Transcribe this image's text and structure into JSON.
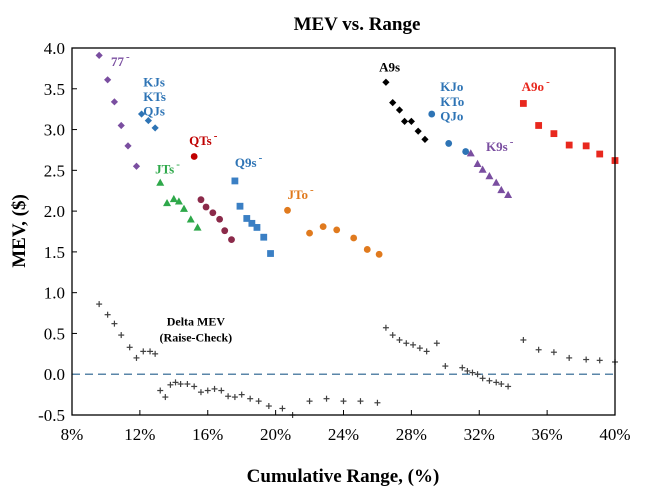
{
  "chart_data": {
    "type": "scatter",
    "title": "MEV vs. Range",
    "xlabel": "Cumulative Range, (%)",
    "ylabel": "MEV, ($)",
    "xlim": [
      8,
      40
    ],
    "ylim": [
      -0.5,
      4.0
    ],
    "xticks": [
      8,
      12,
      16,
      20,
      24,
      28,
      32,
      36,
      40
    ],
    "xtick_labels": [
      "8%",
      "12%",
      "16%",
      "20%",
      "24%",
      "28%",
      "32%",
      "36%",
      "40%"
    ],
    "yticks": [
      -0.5,
      0.0,
      0.5,
      1.0,
      1.5,
      2.0,
      2.5,
      3.0,
      3.5,
      4.0
    ],
    "ytick_labels": [
      "-0.5",
      "0.0",
      "0.5",
      "1.0",
      "1.5",
      "2.0",
      "2.5",
      "3.0",
      "3.5",
      "4.0"
    ],
    "reference_line": {
      "y": 0.0,
      "style": "dashed",
      "color": "#5a86a8"
    },
    "series": [
      {
        "name": "77-",
        "label": "77",
        "superscript": "-",
        "color": "#7a4ea0",
        "marker": "diamond",
        "x": [
          9.6,
          10.1,
          10.5,
          10.9,
          11.3,
          11.8
        ],
        "y": [
          3.91,
          3.61,
          3.34,
          3.05,
          2.8,
          2.55
        ]
      },
      {
        "name": "KJs / KTs / QJs",
        "label": "KJs\nKTs\nQJs",
        "color": "#2e74b5",
        "marker": "diamond",
        "x": [
          12.1,
          12.5,
          12.9
        ],
        "y": [
          3.19,
          3.11,
          3.02
        ]
      },
      {
        "name": "QTs-",
        "label": "QTs",
        "superscript": "-",
        "color": "#c00000",
        "marker": "circle",
        "x": [
          15.2
        ],
        "y": [
          2.67
        ]
      },
      {
        "name": "JTs-",
        "label": "JTs",
        "superscript": "-",
        "color": "#2ea84a",
        "marker": "triangle",
        "x": [
          13.2,
          13.6,
          14.0,
          14.3,
          14.6,
          15.0,
          15.4
        ],
        "y": [
          2.35,
          2.1,
          2.15,
          2.12,
          2.03,
          1.9,
          1.8
        ]
      },
      {
        "name": "QTs- (cont.)",
        "label": "",
        "color": "#8b2a4a",
        "marker": "circle",
        "x": [
          15.6,
          15.9,
          16.3,
          16.7,
          17.0,
          17.4
        ],
        "y": [
          2.14,
          2.05,
          1.98,
          1.9,
          1.76,
          1.65
        ]
      },
      {
        "name": "Q9s-",
        "label": "Q9s",
        "superscript": "-",
        "color": "#3a7fc4",
        "marker": "square",
        "x": [
          17.6,
          17.9,
          18.3,
          18.6,
          18.9,
          19.3,
          19.7
        ],
        "y": [
          2.37,
          2.06,
          1.91,
          1.85,
          1.8,
          1.68,
          1.48
        ]
      },
      {
        "name": "JTo-",
        "label": "JTo",
        "superscript": "-",
        "color": "#e07a1e",
        "marker": "circle",
        "x": [
          20.7,
          22.0,
          22.8,
          23.6,
          24.6,
          25.4,
          26.1
        ],
        "y": [
          2.01,
          1.73,
          1.81,
          1.77,
          1.67,
          1.53,
          1.47
        ]
      },
      {
        "name": "A9s",
        "label": "A9s",
        "color": "#000000",
        "marker": "diamond",
        "x": [
          26.5,
          26.9,
          27.3,
          27.6,
          28.0,
          28.4,
          28.8
        ],
        "y": [
          3.58,
          3.33,
          3.24,
          3.1,
          3.1,
          2.98,
          2.88
        ]
      },
      {
        "name": "KJo / KTo / QJo",
        "label": "KJo\nKTo\nQJo",
        "color": "#2e74b5",
        "marker": "circle",
        "x": [
          29.2,
          30.2,
          31.2
        ],
        "y": [
          3.19,
          2.83,
          2.73
        ]
      },
      {
        "name": "K9s-",
        "label": "K9s",
        "superscript": "-",
        "color": "#7a4ea0",
        "marker": "triangle",
        "x": [
          31.5,
          31.9,
          32.2,
          32.6,
          33.0,
          33.3,
          33.7
        ],
        "y": [
          2.71,
          2.58,
          2.51,
          2.43,
          2.35,
          2.26,
          2.2
        ]
      },
      {
        "name": "A9o-",
        "label": "A9o",
        "superscript": "-",
        "color": "#e8281e",
        "marker": "square",
        "x": [
          34.6,
          35.5,
          36.4,
          37.3,
          38.3,
          39.1,
          40.0
        ],
        "y": [
          3.32,
          3.05,
          2.95,
          2.81,
          2.8,
          2.7,
          2.62
        ]
      },
      {
        "name": "Delta MEV (Raise-Check)",
        "label": "Delta MEV\n(Raise-Check)",
        "color": "#404040",
        "marker": "plus",
        "x": [
          9.6,
          10.1,
          10.5,
          10.9,
          11.4,
          11.8,
          12.2,
          12.6,
          12.9,
          13.2,
          13.5,
          13.8,
          14.1,
          14.4,
          14.8,
          15.2,
          15.6,
          16.0,
          16.4,
          16.8,
          17.2,
          17.6,
          18.0,
          18.5,
          19.0,
          19.6,
          20.4,
          21.0,
          22.0,
          23.0,
          24.0,
          25.0,
          26.0,
          26.5,
          26.9,
          27.3,
          27.7,
          28.1,
          28.5,
          28.9,
          29.5,
          30.0,
          31.0,
          31.3,
          31.6,
          31.9,
          32.2,
          32.6,
          33.0,
          33.3,
          33.7,
          34.6,
          35.5,
          36.4,
          37.3,
          38.3,
          39.1,
          40.0
        ],
        "y": [
          0.86,
          0.73,
          0.62,
          0.48,
          0.33,
          0.2,
          0.28,
          0.28,
          0.25,
          -0.2,
          -0.28,
          -0.13,
          -0.1,
          -0.12,
          -0.12,
          -0.15,
          -0.22,
          -0.2,
          -0.18,
          -0.2,
          -0.27,
          -0.28,
          -0.25,
          -0.3,
          -0.33,
          -0.39,
          -0.42,
          -0.5,
          -0.33,
          -0.3,
          -0.33,
          -0.33,
          -0.35,
          0.57,
          0.48,
          0.42,
          0.38,
          0.36,
          0.32,
          0.28,
          0.38,
          0.1,
          0.08,
          0.04,
          0.02,
          0.0,
          -0.05,
          -0.08,
          -0.1,
          -0.12,
          -0.15,
          0.42,
          0.3,
          0.27,
          0.2,
          0.18,
          0.17,
          0.15
        ]
      }
    ],
    "annotations": [
      {
        "text": "77",
        "sup": "-",
        "x": 10.3,
        "y": 3.78,
        "color": "#7a4ea0"
      },
      {
        "text": "KJs",
        "x": 12.2,
        "y": 3.53,
        "color": "#2e74b5"
      },
      {
        "text": "KTs",
        "x": 12.2,
        "y": 3.35,
        "color": "#2e74b5"
      },
      {
        "text": "QJs",
        "x": 12.2,
        "y": 3.17,
        "color": "#2e74b5"
      },
      {
        "text": "QTs",
        "sup": "-",
        "x": 14.9,
        "y": 2.81,
        "color": "#c00000"
      },
      {
        "text": "JTs",
        "sup": "-",
        "x": 12.9,
        "y": 2.46,
        "color": "#2ea84a"
      },
      {
        "text": "Q9s",
        "sup": "-",
        "x": 17.6,
        "y": 2.54,
        "color": "#2e74b5"
      },
      {
        "text": "JTo",
        "sup": "-",
        "x": 20.7,
        "y": 2.15,
        "color": "#e07a1e"
      },
      {
        "text": "A9s",
        "x": 26.1,
        "y": 3.71,
        "color": "#000000"
      },
      {
        "text": "KJo",
        "x": 29.7,
        "y": 3.47,
        "color": "#2e74b5"
      },
      {
        "text": "KTo",
        "x": 29.7,
        "y": 3.29,
        "color": "#2e74b5"
      },
      {
        "text": "QJo",
        "x": 29.7,
        "y": 3.11,
        "color": "#2e74b5"
      },
      {
        "text": "K9s",
        "sup": "-",
        "x": 32.4,
        "y": 2.74,
        "color": "#7a4ea0"
      },
      {
        "text": "A9o",
        "sup": "-",
        "x": 34.5,
        "y": 3.47,
        "color": "#e8281e"
      },
      {
        "text": "Delta MEV",
        "x": 15.3,
        "y": 0.6,
        "color": "#000000",
        "small": true
      },
      {
        "text": "(Raise-Check)",
        "x": 15.3,
        "y": 0.4,
        "color": "#000000",
        "small": true
      }
    ]
  }
}
